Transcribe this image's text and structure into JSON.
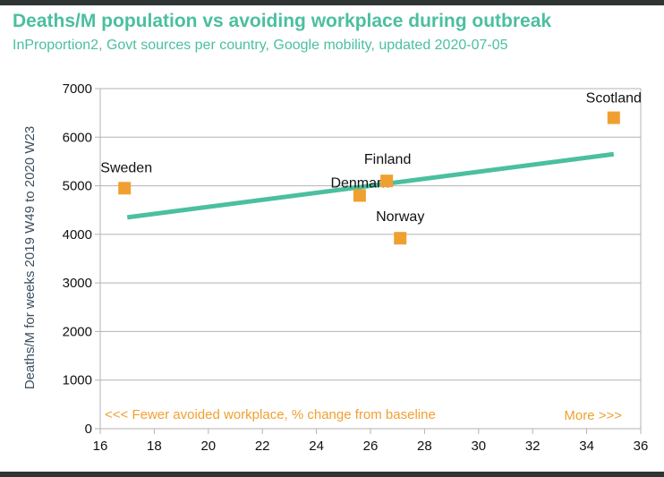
{
  "title": "Deaths/M population vs avoiding workplace during outbreak",
  "subtitle": "InProportion2, Govt sources per country, Google mobility, updated 2020-07-05",
  "colors": {
    "title": "#4bbf9f",
    "trend": "#4bbf9f",
    "points": "#f0a030",
    "grid": "#b3b3b3"
  },
  "chart_data": {
    "type": "scatter",
    "title": "Deaths/M population vs avoiding workplace during outbreak",
    "subtitle": "InProportion2, Govt sources per country, Google mobility, updated 2020-07-05",
    "ylabel": "Deaths/M for weeks 2019 W49 to 2020 W23",
    "xlabel": "",
    "xlim": [
      16,
      36
    ],
    "ylim": [
      0,
      7000
    ],
    "xticks": [
      "16",
      "18",
      "20",
      "22",
      "24",
      "26",
      "28",
      "30",
      "32",
      "34",
      "36"
    ],
    "yticks": [
      "0",
      "1000",
      "2000",
      "3000",
      "4000",
      "5000",
      "6000",
      "7000"
    ],
    "grid": "horizontal",
    "points": [
      {
        "label": "Sweden",
        "x": 16.9,
        "y": 4950
      },
      {
        "label": "Denmark",
        "x": 25.6,
        "y": 4800
      },
      {
        "label": "Finland",
        "x": 26.6,
        "y": 5100
      },
      {
        "label": "Norway",
        "x": 27.1,
        "y": 3920
      },
      {
        "label": "Scotland",
        "x": 35.0,
        "y": 6400
      }
    ],
    "trendline": {
      "x": [
        17.0,
        35.0
      ],
      "y": [
        4350,
        5650
      ]
    },
    "annotations": {
      "left": "<<< Fewer avoided workplace, % change from baseline",
      "right": "More >>>"
    }
  }
}
